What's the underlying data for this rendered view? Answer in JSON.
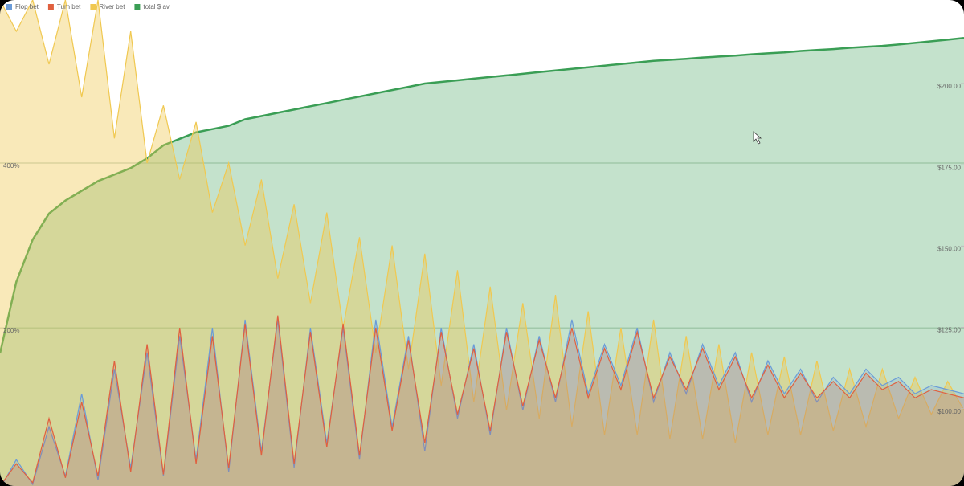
{
  "chart_data": {
    "type": "line",
    "categories": [
      null,
      null,
      null,
      null,
      null,
      null,
      null,
      null,
      null,
      null,
      null,
      null,
      null,
      null,
      null,
      null,
      null,
      null,
      null,
      null,
      null,
      null,
      null,
      null,
      null,
      null,
      null,
      null,
      null,
      null,
      null,
      null,
      null,
      null,
      null,
      null,
      null,
      null,
      null,
      null,
      null,
      null,
      null,
      null,
      null,
      null,
      null,
      null,
      null,
      null,
      null,
      null,
      null,
      null,
      null,
      null,
      null,
      null,
      null,
      null
    ],
    "series": [
      {
        "name": "Flop bet",
        "color": "#6a9bd8",
        "values": [
          5,
          40,
          10,
          80,
          20,
          120,
          15,
          150,
          30,
          170,
          20,
          190,
          40,
          200,
          25,
          210,
          50,
          210,
          30,
          200,
          60,
          200,
          40,
          210,
          80,
          190,
          50,
          200,
          90,
          180,
          70,
          200,
          100,
          190,
          110,
          210,
          120,
          180,
          130,
          200,
          110,
          170,
          120,
          180,
          130,
          170,
          110,
          160,
          120,
          150,
          110,
          140,
          120,
          150,
          130,
          140,
          120,
          130,
          125,
          120
        ]
      },
      {
        "name": "Turn bet",
        "color": "#e0603f",
        "values": [
          8,
          35,
          12,
          90,
          18,
          110,
          20,
          160,
          25,
          180,
          22,
          200,
          35,
          190,
          30,
          205,
          45,
          215,
          35,
          195,
          55,
          205,
          45,
          200,
          75,
          185,
          60,
          195,
          95,
          175,
          75,
          195,
          105,
          185,
          115,
          200,
          115,
          175,
          125,
          195,
          115,
          165,
          125,
          175,
          125,
          165,
          115,
          155,
          115,
          145,
          115,
          135,
          115,
          145,
          125,
          135,
          115,
          125,
          120,
          115
        ]
      },
      {
        "name": "River bet",
        "color": "#f0c850",
        "values": [
          598,
          560,
          598,
          520,
          598,
          480,
          598,
          430,
          560,
          400,
          470,
          380,
          450,
          340,
          400,
          300,
          380,
          260,
          350,
          230,
          340,
          200,
          310,
          170,
          300,
          150,
          290,
          130,
          270,
          110,
          250,
          100,
          230,
          90,
          240,
          80,
          220,
          70,
          200,
          70,
          210,
          65,
          190,
          65,
          180,
          60,
          170,
          70,
          165,
          70,
          160,
          75,
          150,
          80,
          150,
          90,
          140,
          95,
          135,
          100
        ]
      },
      {
        "name": "total $ av",
        "color": "#3a9e55",
        "axis": "y2",
        "values": [
          117,
          139,
          152,
          160,
          164,
          167,
          170,
          172,
          174,
          177,
          181,
          183,
          185,
          186,
          187,
          189,
          190,
          191,
          192,
          193,
          194,
          195,
          196,
          197,
          198,
          199,
          200,
          200.5,
          201,
          201.5,
          202,
          202.5,
          203,
          203.5,
          204,
          204.5,
          205,
          205.5,
          206,
          206.5,
          207,
          207.3,
          207.6,
          208,
          208.3,
          208.6,
          209,
          209.3,
          209.6,
          210,
          210.3,
          210.6,
          211,
          211.3,
          211.6,
          212,
          212.5,
          213,
          213.5,
          214
        ]
      }
    ],
    "ylim": [
      8,
      598
    ],
    "yticks": [
      {
        "value": 200,
        "label": "200%"
      },
      {
        "value": 400,
        "label": "400%"
      }
    ],
    "y2lim": [
      76.2,
      225.7
    ],
    "y2ticks": [
      {
        "value": 100,
        "label": "$100.00"
      },
      {
        "value": 125,
        "label": "$125.00"
      },
      {
        "value": 150,
        "label": "$150.00"
      },
      {
        "value": 175,
        "label": "$175.00"
      },
      {
        "value": 200,
        "label": "$200.00"
      }
    ],
    "grid": true,
    "legend": "top-left"
  }
}
